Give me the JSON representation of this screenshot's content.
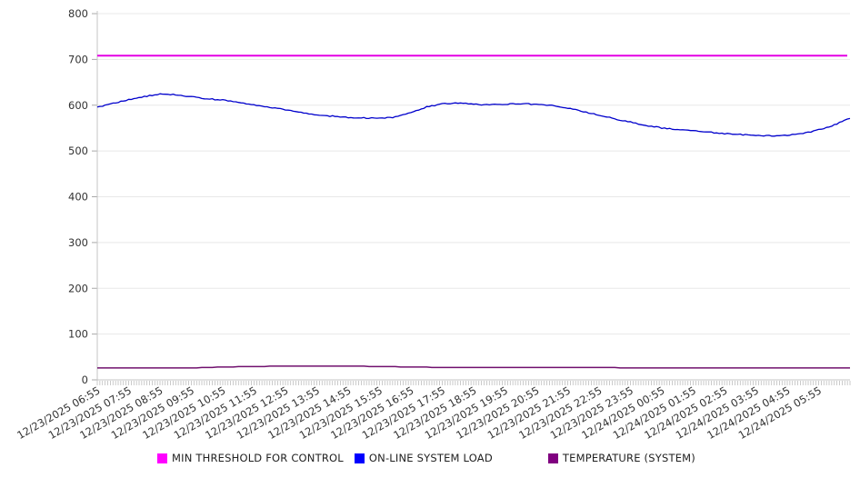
{
  "chart_data": {
    "type": "line",
    "title": "",
    "xlabel": "",
    "ylabel": "",
    "grid": "horizontal",
    "legend_position": "bottom",
    "y_axis": {
      "min": 0,
      "max": 800,
      "step": 100,
      "tick_labels": [
        "0",
        "100",
        "200",
        "300",
        "400",
        "500",
        "600",
        "700",
        "800"
      ]
    },
    "x_axis": {
      "minor_ticks_per_major": 12,
      "tick_labels": [
        "12/23/2025 06:55",
        "12/23/2025 07:55",
        "12/23/2025 08:55",
        "12/23/2025 09:55",
        "12/23/2025 10:55",
        "12/23/2025 11:55",
        "12/23/2025 12:55",
        "12/23/2025 13:55",
        "12/23/2025 14:55",
        "12/23/2025 15:55",
        "12/23/2025 16:55",
        "12/23/2025 17:55",
        "12/23/2025 18:55",
        "12/23/2025 19:55",
        "12/23/2025 20:55",
        "12/23/2025 21:55",
        "12/23/2025 22:55",
        "12/23/2025 23:55",
        "12/24/2025 00:55",
        "12/24/2025 01:55",
        "12/24/2025 02:55",
        "12/24/2025 03:55",
        "12/24/2025 04:55",
        "12/24/2025 05:55"
      ]
    },
    "series": [
      {
        "name": "MIN THRESHOLD FOR CONTROL",
        "color": "#E400E4",
        "swatch_color": "#FF00FF",
        "kind": "constant",
        "value": 708,
        "line_width": 2
      },
      {
        "name": "ON-LINE SYSTEM LOAD",
        "color": "#0000CC",
        "swatch_color": "#0000FF",
        "kind": "line",
        "interval_minutes": 30,
        "line_width": 1.3,
        "values": [
          596,
          604,
          612,
          619,
          624,
          623,
          618,
          614,
          611,
          606,
          600,
          595,
          590,
          584,
          578,
          576,
          573,
          572,
          571,
          574,
          583,
          596,
          603,
          605,
          602,
          601,
          602,
          603,
          602,
          599,
          594,
          586,
          578,
          570,
          563,
          556,
          550,
          547,
          544,
          541,
          538,
          536,
          534,
          533,
          534,
          538,
          546,
          557,
          571
        ]
      },
      {
        "name": "TEMPERATURE (SYSTEM)",
        "color": "#70106E",
        "swatch_color": "#800080",
        "kind": "step",
        "interval_minutes": 60,
        "line_width": 1.5,
        "values": [
          26,
          26,
          26,
          26,
          28,
          29,
          30,
          30,
          30,
          29,
          28,
          27,
          27,
          27,
          27,
          27,
          27,
          26,
          26,
          26,
          26,
          26,
          26,
          26,
          26
        ]
      }
    ]
  }
}
